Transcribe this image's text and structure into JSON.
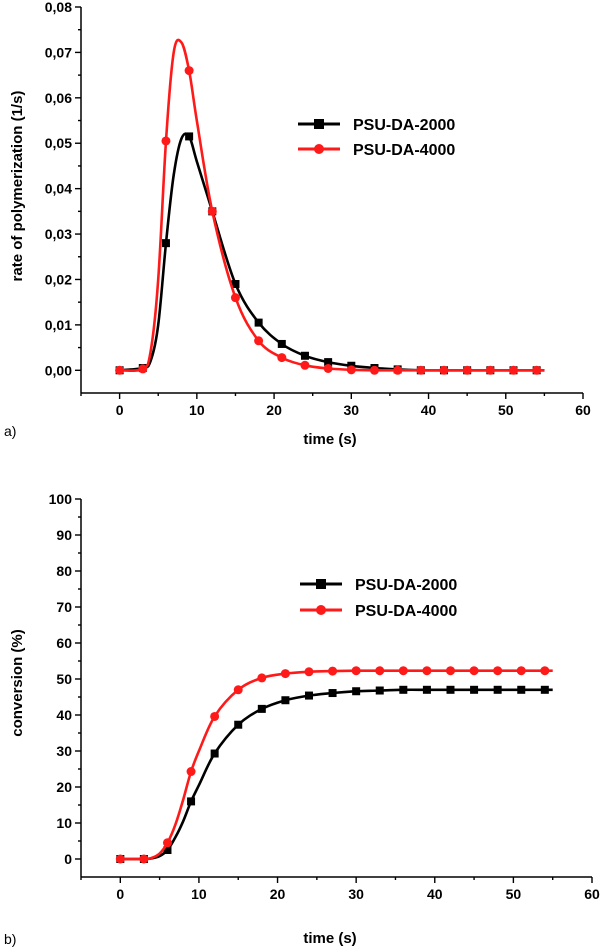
{
  "colors": {
    "series1": "#000000",
    "series2": "#ff1a1a"
  },
  "chart_data": [
    {
      "type": "line",
      "panel_label": "a)",
      "title": "",
      "xlabel": "time (s)",
      "ylabel": "rate of polymerization (1/s)",
      "xlim": [
        -5,
        60
      ],
      "ylim": [
        -0.005,
        0.08
      ],
      "xticks": [
        0,
        10,
        20,
        30,
        40,
        50,
        60
      ],
      "xtick_labels": [
        "0",
        "10",
        "20",
        "30",
        "40",
        "50",
        "60"
      ],
      "yticks": [
        0,
        0.01,
        0.02,
        0.03,
        0.04,
        0.05,
        0.06,
        0.07,
        0.08
      ],
      "ytick_labels": [
        "0,00",
        "0,01",
        "0,02",
        "0,03",
        "0,04",
        "0,05",
        "0,06",
        "0,07",
        "0,08"
      ],
      "grid": false,
      "legend_position": "top-right",
      "series": [
        {
          "name": "PSU-DA-2000",
          "color": "#000000",
          "marker": "square",
          "curve": {
            "x": [
              0,
              3,
              4,
              5,
              6,
              7,
              8,
              9,
              10,
              12,
              15,
              18,
              21,
              24,
              27,
              30,
              33,
              36,
              39,
              42,
              45,
              48,
              51,
              54,
              55
            ],
            "y": [
              0,
              0.0005,
              0.002,
              0.01,
              0.028,
              0.043,
              0.051,
              0.0515,
              0.046,
              0.035,
              0.019,
              0.0105,
              0.0058,
              0.0032,
              0.0018,
              0.001,
              0.0005,
              0.0002,
              0,
              0,
              0,
              0,
              0,
              0,
              0
            ]
          },
          "markers": {
            "x": [
              0,
              3,
              6,
              9,
              12,
              15,
              18,
              21,
              24,
              27,
              30,
              33,
              36,
              39,
              42,
              45,
              48,
              51,
              54
            ],
            "y": [
              0,
              0.0005,
              0.028,
              0.0515,
              0.035,
              0.019,
              0.0105,
              0.0058,
              0.0032,
              0.0018,
              0.001,
              0.0005,
              0.0002,
              0,
              0,
              0,
              0,
              0,
              0
            ]
          }
        },
        {
          "name": "PSU-DA-4000",
          "color": "#ff1a1a",
          "marker": "circle",
          "curve": {
            "x": [
              0,
              3,
              4,
              5,
              6,
              7,
              8,
              9,
              10,
              12,
              15,
              18,
              21,
              24,
              27,
              30,
              33,
              36,
              39,
              42,
              45,
              48,
              51,
              54,
              55
            ],
            "y": [
              0,
              0.0003,
              0.004,
              0.02,
              0.0505,
              0.07,
              0.0722,
              0.066,
              0.055,
              0.035,
              0.016,
              0.0065,
              0.0028,
              0.0011,
              0.0004,
              0.0001,
              0,
              0,
              0,
              0,
              0,
              0,
              0,
              0,
              0
            ]
          },
          "markers": {
            "x": [
              0,
              3,
              6,
              9,
              12,
              15,
              18,
              21,
              24,
              27,
              30,
              33,
              36,
              39,
              42,
              45,
              48,
              51,
              54
            ],
            "y": [
              0,
              0.0003,
              0.0505,
              0.066,
              0.035,
              0.016,
              0.0065,
              0.0028,
              0.0011,
              0.0004,
              0.0001,
              0,
              0,
              0,
              0,
              0,
              0,
              0,
              0
            ]
          }
        }
      ]
    },
    {
      "type": "line",
      "panel_label": "b)",
      "title": "",
      "xlabel": "time (s)",
      "ylabel": "conversion (%)",
      "xlim": [
        -5,
        60
      ],
      "ylim": [
        -5,
        100
      ],
      "xticks": [
        0,
        10,
        20,
        30,
        40,
        50,
        60
      ],
      "xtick_labels": [
        "0",
        "10",
        "20",
        "30",
        "40",
        "50",
        "60"
      ],
      "yticks": [
        0,
        10,
        20,
        30,
        40,
        50,
        60,
        70,
        80,
        90,
        100
      ],
      "ytick_labels": [
        "0",
        "10",
        "20",
        "30",
        "40",
        "50",
        "60",
        "70",
        "80",
        "90",
        "100"
      ],
      "grid": false,
      "legend_position": "top-right",
      "series": [
        {
          "name": "PSU-DA-2000",
          "color": "#000000",
          "marker": "square",
          "curve": {
            "x": [
              0,
              3,
              4,
              5,
              6,
              7,
              8,
              9,
              10,
              12,
              15,
              18,
              21,
              24,
              27,
              30,
              33,
              36,
              39,
              42,
              45,
              48,
              51,
              54,
              55
            ],
            "y": [
              0,
              0,
              0.2,
              0.8,
              2.5,
              6,
              10.5,
              16,
              20.5,
              29.3,
              37.3,
              41.7,
              44.1,
              45.4,
              46.1,
              46.6,
              46.8,
              47,
              47,
              47,
              47,
              47,
              47,
              47,
              47
            ]
          },
          "markers": {
            "x": [
              0,
              3,
              6,
              9,
              12,
              15,
              18,
              21,
              24,
              27,
              30,
              33,
              36,
              39,
              42,
              45,
              48,
              51,
              54
            ],
            "y": [
              0,
              0,
              2.5,
              16,
              29.3,
              37.3,
              41.7,
              44.1,
              45.4,
              46.1,
              46.6,
              46.8,
              47,
              47,
              47,
              47,
              47,
              47,
              47
            ]
          }
        },
        {
          "name": "PSU-DA-4000",
          "color": "#ff1a1a",
          "marker": "circle",
          "curve": {
            "x": [
              0,
              3,
              4,
              5,
              6,
              7,
              8,
              9,
              10,
              12,
              15,
              18,
              21,
              24,
              27,
              30,
              33,
              36,
              39,
              42,
              45,
              48,
              51,
              54,
              55
            ],
            "y": [
              0,
              0,
              0.3,
              1.5,
              4.5,
              9.5,
              16.5,
              24.3,
              30,
              39.6,
              47,
              50.3,
              51.5,
              52,
              52.2,
              52.3,
              52.3,
              52.3,
              52.3,
              52.3,
              52.3,
              52.3,
              52.3,
              52.3,
              52.3
            ]
          },
          "markers": {
            "x": [
              0,
              3,
              6,
              9,
              12,
              15,
              18,
              21,
              24,
              27,
              30,
              33,
              36,
              39,
              42,
              45,
              48,
              51,
              54
            ],
            "y": [
              0,
              0,
              4.5,
              24.3,
              39.6,
              47,
              50.3,
              51.5,
              52,
              52.2,
              52.3,
              52.3,
              52.3,
              52.3,
              52.3,
              52.3,
              52.3,
              52.3,
              52.3
            ]
          }
        }
      ]
    }
  ]
}
